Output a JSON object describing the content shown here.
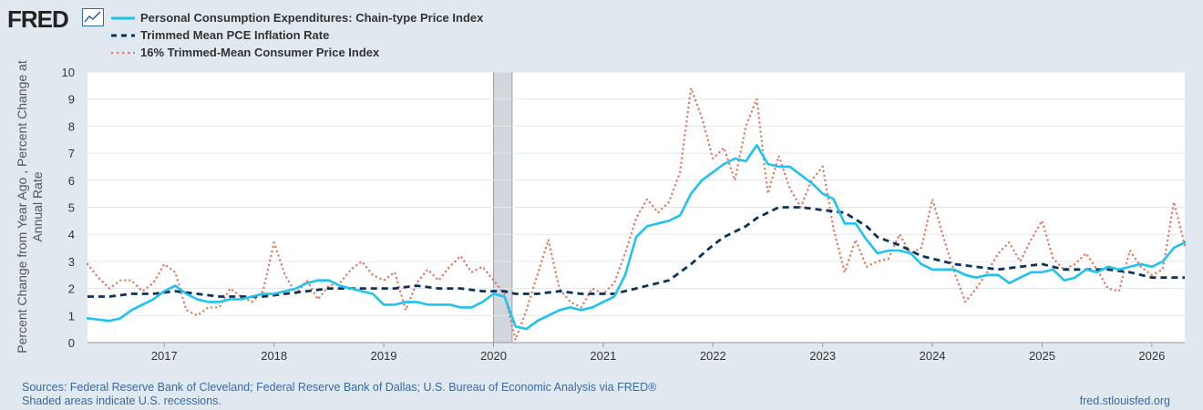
{
  "header": {
    "logo_text": "FRED"
  },
  "legend": [
    {
      "label": "Personal Consumption Expenditures: Chain-type Price Index",
      "color": "#1ec3ef",
      "style": "solid"
    },
    {
      "label": "Trimmed Mean PCE Inflation Rate",
      "color": "#0c325c",
      "style": "dashed"
    },
    {
      "label": "16% Trimmed-Mean Consumer Price Index",
      "color": "#e0795f",
      "style": "dotted"
    }
  ],
  "footer": {
    "sources": "Sources: Federal Reserve Bank of Cleveland; Federal Reserve Bank of Dallas; U.S. Bureau of Economic Analysis via FRED®",
    "recession_note": "Shaded areas indicate U.S. recessions.",
    "url": "fred.stlouisfed.org"
  },
  "chart_data": {
    "type": "line",
    "title": "",
    "ylabel": "Percent Change from Year Ago , Percent Change at Annual Rate",
    "xlabel": "",
    "xlim": [
      2016.3,
      2026.3
    ],
    "ylim": [
      0,
      10
    ],
    "y_ticks": [
      "0",
      "1",
      "2",
      "3",
      "4",
      "5",
      "6",
      "7",
      "8",
      "9",
      "10"
    ],
    "x_ticks": [
      "2017",
      "2018",
      "2019",
      "2020",
      "2021",
      "2022",
      "2023",
      "2024",
      "2025",
      "2026"
    ],
    "grid": true,
    "recessions": [
      [
        2020.0,
        2020.17
      ]
    ],
    "series": [
      {
        "name": "Personal Consumption Expenditures: Chain-type Price Index",
        "color": "#1ec3ef",
        "points": [
          [
            2016.3,
            0.9
          ],
          [
            2016.4,
            0.85
          ],
          [
            2016.5,
            0.8
          ],
          [
            2016.6,
            0.9
          ],
          [
            2016.7,
            1.2
          ],
          [
            2016.8,
            1.4
          ],
          [
            2016.9,
            1.6
          ],
          [
            2017.0,
            1.9
          ],
          [
            2017.1,
            2.1
          ],
          [
            2017.2,
            1.8
          ],
          [
            2017.3,
            1.6
          ],
          [
            2017.4,
            1.5
          ],
          [
            2017.5,
            1.5
          ],
          [
            2017.6,
            1.6
          ],
          [
            2017.7,
            1.6
          ],
          [
            2017.8,
            1.7
          ],
          [
            2017.9,
            1.8
          ],
          [
            2018.0,
            1.8
          ],
          [
            2018.1,
            1.9
          ],
          [
            2018.2,
            2.0
          ],
          [
            2018.3,
            2.2
          ],
          [
            2018.4,
            2.3
          ],
          [
            2018.5,
            2.3
          ],
          [
            2018.6,
            2.1
          ],
          [
            2018.7,
            2.0
          ],
          [
            2018.8,
            1.9
          ],
          [
            2018.9,
            1.8
          ],
          [
            2019.0,
            1.4
          ],
          [
            2019.1,
            1.4
          ],
          [
            2019.2,
            1.5
          ],
          [
            2019.3,
            1.5
          ],
          [
            2019.4,
            1.4
          ],
          [
            2019.5,
            1.4
          ],
          [
            2019.6,
            1.4
          ],
          [
            2019.7,
            1.3
          ],
          [
            2019.8,
            1.3
          ],
          [
            2019.9,
            1.5
          ],
          [
            2020.0,
            1.8
          ],
          [
            2020.1,
            1.7
          ],
          [
            2020.2,
            0.6
          ],
          [
            2020.3,
            0.5
          ],
          [
            2020.4,
            0.8
          ],
          [
            2020.5,
            1.0
          ],
          [
            2020.6,
            1.2
          ],
          [
            2020.7,
            1.3
          ],
          [
            2020.8,
            1.2
          ],
          [
            2020.9,
            1.3
          ],
          [
            2021.0,
            1.5
          ],
          [
            2021.1,
            1.7
          ],
          [
            2021.2,
            2.5
          ],
          [
            2021.3,
            3.9
          ],
          [
            2021.4,
            4.3
          ],
          [
            2021.5,
            4.4
          ],
          [
            2021.6,
            4.5
          ],
          [
            2021.7,
            4.7
          ],
          [
            2021.8,
            5.5
          ],
          [
            2021.9,
            6.0
          ],
          [
            2022.0,
            6.3
          ],
          [
            2022.1,
            6.6
          ],
          [
            2022.2,
            6.8
          ],
          [
            2022.3,
            6.7
          ],
          [
            2022.4,
            7.3
          ],
          [
            2022.5,
            6.6
          ],
          [
            2022.6,
            6.5
          ],
          [
            2022.7,
            6.5
          ],
          [
            2022.8,
            6.2
          ],
          [
            2022.9,
            5.9
          ],
          [
            2023.0,
            5.5
          ],
          [
            2023.1,
            5.3
          ],
          [
            2023.2,
            4.4
          ],
          [
            2023.3,
            4.4
          ],
          [
            2023.4,
            3.8
          ],
          [
            2023.5,
            3.3
          ],
          [
            2023.6,
            3.4
          ],
          [
            2023.7,
            3.4
          ],
          [
            2023.8,
            3.3
          ],
          [
            2023.9,
            2.9
          ],
          [
            2024.0,
            2.7
          ],
          [
            2024.1,
            2.7
          ],
          [
            2024.2,
            2.7
          ],
          [
            2024.3,
            2.5
          ],
          [
            2024.4,
            2.4
          ],
          [
            2024.5,
            2.5
          ],
          [
            2024.6,
            2.5
          ],
          [
            2024.7,
            2.2
          ],
          [
            2024.8,
            2.4
          ],
          [
            2024.9,
            2.6
          ],
          [
            2025.0,
            2.6
          ],
          [
            2025.1,
            2.7
          ],
          [
            2025.2,
            2.3
          ],
          [
            2025.3,
            2.4
          ],
          [
            2025.4,
            2.7
          ],
          [
            2025.5,
            2.6
          ],
          [
            2025.6,
            2.8
          ],
          [
            2025.7,
            2.7
          ],
          [
            2025.8,
            2.8
          ],
          [
            2025.9,
            2.9
          ],
          [
            2026.0,
            2.8
          ],
          [
            2026.1,
            3.0
          ],
          [
            2026.2,
            3.5
          ],
          [
            2026.3,
            3.7
          ]
        ]
      },
      {
        "name": "Trimmed Mean PCE Inflation Rate",
        "color": "#0c325c",
        "points": [
          [
            2016.3,
            1.7
          ],
          [
            2016.5,
            1.7
          ],
          [
            2016.7,
            1.8
          ],
          [
            2016.9,
            1.8
          ],
          [
            2017.1,
            1.9
          ],
          [
            2017.3,
            1.8
          ],
          [
            2017.5,
            1.7
          ],
          [
            2017.7,
            1.7
          ],
          [
            2017.9,
            1.7
          ],
          [
            2018.1,
            1.8
          ],
          [
            2018.3,
            1.9
          ],
          [
            2018.5,
            2.0
          ],
          [
            2018.7,
            2.0
          ],
          [
            2018.9,
            2.0
          ],
          [
            2019.1,
            2.0
          ],
          [
            2019.3,
            2.1
          ],
          [
            2019.5,
            2.0
          ],
          [
            2019.7,
            2.0
          ],
          [
            2019.9,
            1.9
          ],
          [
            2020.1,
            1.9
          ],
          [
            2020.2,
            1.8
          ],
          [
            2020.4,
            1.8
          ],
          [
            2020.6,
            1.9
          ],
          [
            2020.8,
            1.8
          ],
          [
            2021.0,
            1.8
          ],
          [
            2021.1,
            1.8
          ],
          [
            2021.3,
            2.0
          ],
          [
            2021.5,
            2.2
          ],
          [
            2021.6,
            2.3
          ],
          [
            2021.8,
            2.9
          ],
          [
            2022.0,
            3.6
          ],
          [
            2022.1,
            3.9
          ],
          [
            2022.3,
            4.3
          ],
          [
            2022.4,
            4.6
          ],
          [
            2022.6,
            5.0
          ],
          [
            2022.8,
            5.0
          ],
          [
            2023.0,
            4.9
          ],
          [
            2023.2,
            4.8
          ],
          [
            2023.4,
            4.3
          ],
          [
            2023.5,
            3.9
          ],
          [
            2023.7,
            3.6
          ],
          [
            2023.9,
            3.2
          ],
          [
            2024.0,
            3.1
          ],
          [
            2024.2,
            2.9
          ],
          [
            2024.4,
            2.8
          ],
          [
            2024.6,
            2.7
          ],
          [
            2024.8,
            2.8
          ],
          [
            2025.0,
            2.9
          ],
          [
            2025.2,
            2.7
          ],
          [
            2025.4,
            2.7
          ],
          [
            2025.6,
            2.7
          ],
          [
            2025.8,
            2.6
          ],
          [
            2026.0,
            2.4
          ],
          [
            2026.1,
            2.4
          ],
          [
            2026.3,
            2.4
          ]
        ]
      },
      {
        "name": "16% Trimmed-Mean Consumer Price Index",
        "color": "#e0795f",
        "points": [
          [
            2016.3,
            2.9
          ],
          [
            2016.4,
            2.4
          ],
          [
            2016.5,
            2.0
          ],
          [
            2016.6,
            2.3
          ],
          [
            2016.7,
            2.3
          ],
          [
            2016.8,
            1.9
          ],
          [
            2016.9,
            2.2
          ],
          [
            2017.0,
            2.9
          ],
          [
            2017.1,
            2.6
          ],
          [
            2017.2,
            1.2
          ],
          [
            2017.3,
            1.0
          ],
          [
            2017.4,
            1.3
          ],
          [
            2017.5,
            1.3
          ],
          [
            2017.6,
            2.0
          ],
          [
            2017.7,
            1.7
          ],
          [
            2017.8,
            1.5
          ],
          [
            2017.9,
            1.9
          ],
          [
            2018.0,
            3.7
          ],
          [
            2018.1,
            2.5
          ],
          [
            2018.2,
            1.8
          ],
          [
            2018.3,
            2.3
          ],
          [
            2018.4,
            1.6
          ],
          [
            2018.5,
            2.1
          ],
          [
            2018.6,
            2.2
          ],
          [
            2018.7,
            2.7
          ],
          [
            2018.8,
            3.0
          ],
          [
            2018.9,
            2.5
          ],
          [
            2019.0,
            2.3
          ],
          [
            2019.1,
            2.6
          ],
          [
            2019.2,
            1.2
          ],
          [
            2019.3,
            2.2
          ],
          [
            2019.4,
            2.7
          ],
          [
            2019.5,
            2.3
          ],
          [
            2019.6,
            2.8
          ],
          [
            2019.7,
            3.2
          ],
          [
            2019.8,
            2.6
          ],
          [
            2019.9,
            2.8
          ],
          [
            2020.0,
            2.3
          ],
          [
            2020.1,
            1.8
          ],
          [
            2020.2,
            0.1
          ],
          [
            2020.3,
            1.2
          ],
          [
            2020.4,
            2.5
          ],
          [
            2020.5,
            3.8
          ],
          [
            2020.6,
            2.0
          ],
          [
            2020.7,
            1.5
          ],
          [
            2020.8,
            1.3
          ],
          [
            2020.9,
            2.0
          ],
          [
            2021.0,
            1.8
          ],
          [
            2021.1,
            2.2
          ],
          [
            2021.2,
            3.3
          ],
          [
            2021.3,
            4.6
          ],
          [
            2021.4,
            5.3
          ],
          [
            2021.5,
            4.8
          ],
          [
            2021.6,
            5.2
          ],
          [
            2021.7,
            6.3
          ],
          [
            2021.8,
            9.4
          ],
          [
            2021.9,
            8.3
          ],
          [
            2022.0,
            6.8
          ],
          [
            2022.1,
            7.2
          ],
          [
            2022.2,
            6.0
          ],
          [
            2022.3,
            8.0
          ],
          [
            2022.4,
            9.0
          ],
          [
            2022.5,
            5.5
          ],
          [
            2022.6,
            6.9
          ],
          [
            2022.7,
            5.7
          ],
          [
            2022.8,
            5.0
          ],
          [
            2022.9,
            6.0
          ],
          [
            2023.0,
            6.5
          ],
          [
            2023.1,
            4.2
          ],
          [
            2023.2,
            2.6
          ],
          [
            2023.3,
            3.8
          ],
          [
            2023.4,
            2.8
          ],
          [
            2023.5,
            3.0
          ],
          [
            2023.6,
            3.1
          ],
          [
            2023.7,
            4.0
          ],
          [
            2023.8,
            3.3
          ],
          [
            2023.9,
            3.5
          ],
          [
            2024.0,
            5.3
          ],
          [
            2024.1,
            3.9
          ],
          [
            2024.2,
            2.6
          ],
          [
            2024.3,
            1.5
          ],
          [
            2024.4,
            2.0
          ],
          [
            2024.5,
            2.6
          ],
          [
            2024.6,
            3.3
          ],
          [
            2024.7,
            3.7
          ],
          [
            2024.8,
            3.0
          ],
          [
            2024.9,
            3.8
          ],
          [
            2025.0,
            4.5
          ],
          [
            2025.1,
            3.1
          ],
          [
            2025.2,
            2.7
          ],
          [
            2025.3,
            2.9
          ],
          [
            2025.4,
            3.3
          ],
          [
            2025.5,
            2.7
          ],
          [
            2025.6,
            2.0
          ],
          [
            2025.7,
            1.9
          ],
          [
            2025.8,
            3.4
          ],
          [
            2025.9,
            2.8
          ],
          [
            2026.0,
            2.5
          ],
          [
            2026.1,
            2.7
          ],
          [
            2026.2,
            5.2
          ],
          [
            2026.3,
            3.6
          ]
        ]
      }
    ]
  }
}
